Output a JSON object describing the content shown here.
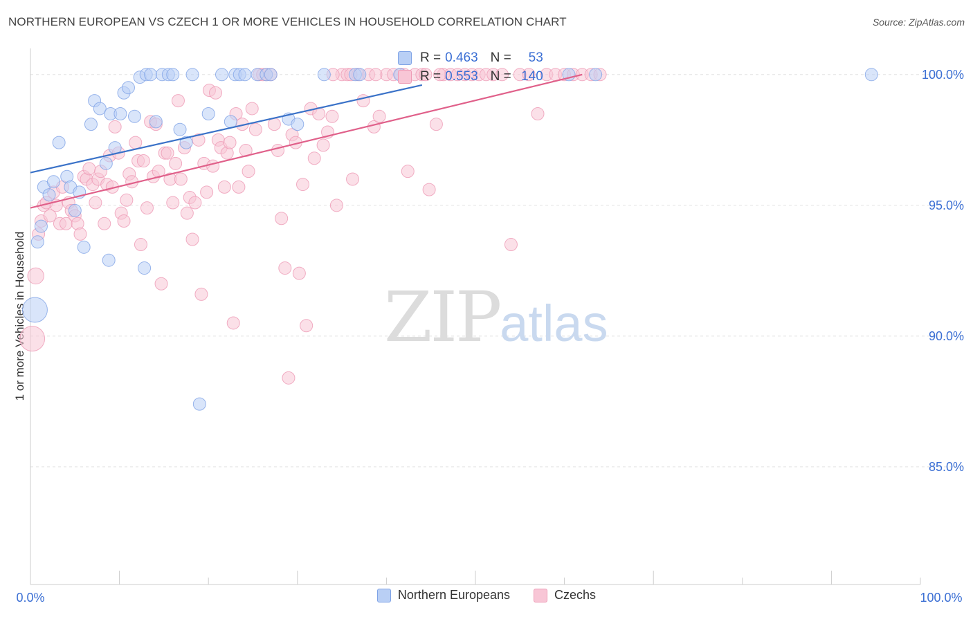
{
  "header": {
    "title": "NORTHERN EUROPEAN VS CZECH 1 OR MORE VEHICLES IN HOUSEHOLD CORRELATION CHART",
    "source": "Source: ZipAtlas.com"
  },
  "watermark": {
    "zip": "ZIP",
    "atlas": "atlas"
  },
  "stats": [
    {
      "r_label": "R = ",
      "r_value": "0.463",
      "n_label": "N = ",
      "n_value": "53",
      "fill": "#b9cff5",
      "stroke": "#7fa3e6"
    },
    {
      "r_label": "R = ",
      "r_value": "0.553",
      "n_label": "N = ",
      "n_value": "140",
      "fill": "#f8c6d6",
      "stroke": "#ee9ab5"
    }
  ],
  "chart_data": {
    "type": "scatter",
    "title": "NORTHERN EUROPEAN VS CZECH 1 OR MORE VEHICLES IN HOUSEHOLD CORRELATION CHART",
    "xlabel": "",
    "ylabel": "1 or more Vehicles in Household",
    "xlim": [
      0,
      100
    ],
    "ylim": [
      80.5,
      101
    ],
    "x_tick_labels": [
      "0.0%",
      "100.0%"
    ],
    "y_ticks": [
      {
        "value": 100,
        "label": "100.0%"
      },
      {
        "value": 95,
        "label": "95.0%"
      },
      {
        "value": 90,
        "label": "90.0%"
      },
      {
        "value": 85,
        "label": "85.0%"
      }
    ],
    "legend": [
      "Northern Europeans",
      "Czechs"
    ],
    "series": [
      {
        "name": "Northern Europeans",
        "color": "#7fa3e6",
        "fill": "#b9cff5",
        "line_color": "#3a72c8",
        "trend": {
          "x0": 0,
          "y0": 96.25,
          "x1": 44,
          "y1": 99.6
        },
        "points": [
          [
            0.5,
            91.0,
            2.0
          ],
          [
            0.8,
            93.6,
            1
          ],
          [
            1.2,
            94.2,
            1
          ],
          [
            1.5,
            95.7,
            1
          ],
          [
            2.1,
            95.4,
            1
          ],
          [
            2.6,
            95.9,
            1
          ],
          [
            3.2,
            97.4,
            1
          ],
          [
            4.1,
            96.1,
            1
          ],
          [
            4.5,
            95.7,
            1
          ],
          [
            5.0,
            94.8,
            1
          ],
          [
            5.5,
            95.5,
            1
          ],
          [
            6.0,
            93.4,
            1
          ],
          [
            6.8,
            98.1,
            1
          ],
          [
            7.2,
            99.0,
            1
          ],
          [
            7.8,
            98.7,
            1
          ],
          [
            8.5,
            96.6,
            1
          ],
          [
            8.8,
            92.9,
            1
          ],
          [
            9.0,
            98.5,
            1
          ],
          [
            9.5,
            97.2,
            1
          ],
          [
            10.1,
            98.5,
            1
          ],
          [
            10.5,
            99.3,
            1
          ],
          [
            11.0,
            99.5,
            1
          ],
          [
            11.7,
            98.4,
            1
          ],
          [
            12.3,
            99.9,
            1
          ],
          [
            12.8,
            92.6,
            1
          ],
          [
            13.0,
            100.0,
            1
          ],
          [
            13.5,
            100.0,
            1
          ],
          [
            14.1,
            98.2,
            1
          ],
          [
            14.8,
            100.0,
            1
          ],
          [
            15.5,
            100.0,
            1
          ],
          [
            16.0,
            100.0,
            1
          ],
          [
            16.8,
            97.9,
            1
          ],
          [
            17.5,
            97.4,
            1
          ],
          [
            18.2,
            100.0,
            1
          ],
          [
            19.0,
            87.4,
            1
          ],
          [
            20.0,
            98.5,
            1
          ],
          [
            21.5,
            100.0,
            1
          ],
          [
            22.5,
            98.2,
            1
          ],
          [
            23.0,
            100.0,
            1
          ],
          [
            23.5,
            100.0,
            1
          ],
          [
            24.1,
            100.0,
            1
          ],
          [
            25.5,
            100.0,
            1
          ],
          [
            26.5,
            100.0,
            1
          ],
          [
            27.0,
            100.0,
            1
          ],
          [
            29.0,
            98.3,
            1
          ],
          [
            30.0,
            98.1,
            1
          ],
          [
            33.0,
            100.0,
            1
          ],
          [
            36.5,
            100.0,
            1
          ],
          [
            37.0,
            100.0,
            1
          ],
          [
            41.5,
            100.0,
            1
          ],
          [
            60.5,
            100.0,
            1
          ],
          [
            63.5,
            100.0,
            1
          ],
          [
            94.5,
            100.0,
            1
          ]
        ]
      },
      {
        "name": "Czechs",
        "color": "#ee9ab5",
        "fill": "#f8c6d6",
        "line_color": "#e0608a",
        "trend": {
          "x0": 0,
          "y0": 94.9,
          "x1": 62,
          "y1": 100.0
        },
        "points": [
          [
            0.2,
            89.9,
            2.0
          ],
          [
            0.6,
            92.3,
            1.3
          ],
          [
            0.9,
            93.9,
            1
          ],
          [
            1.2,
            94.4,
            1
          ],
          [
            1.5,
            95.0,
            1
          ],
          [
            1.8,
            95.1,
            1
          ],
          [
            2.2,
            94.6,
            1
          ],
          [
            2.6,
            95.5,
            1
          ],
          [
            2.9,
            95.0,
            1
          ],
          [
            3.3,
            94.3,
            1
          ],
          [
            3.6,
            95.7,
            1
          ],
          [
            4.0,
            94.3,
            1
          ],
          [
            4.3,
            95.1,
            1
          ],
          [
            4.6,
            94.8,
            1
          ],
          [
            5.0,
            94.6,
            1
          ],
          [
            5.3,
            94.3,
            1
          ],
          [
            5.6,
            93.9,
            1
          ],
          [
            6.0,
            96.1,
            1
          ],
          [
            6.3,
            96.0,
            1
          ],
          [
            6.6,
            96.4,
            1
          ],
          [
            7.0,
            95.8,
            1
          ],
          [
            7.3,
            95.1,
            1
          ],
          [
            7.6,
            96.0,
            1
          ],
          [
            7.9,
            96.3,
            1
          ],
          [
            8.3,
            94.3,
            1
          ],
          [
            8.6,
            95.8,
            1
          ],
          [
            8.9,
            96.9,
            1
          ],
          [
            9.2,
            95.7,
            1
          ],
          [
            9.5,
            98.0,
            1
          ],
          [
            9.9,
            97.0,
            1
          ],
          [
            10.2,
            94.7,
            1
          ],
          [
            10.5,
            94.4,
            1
          ],
          [
            10.8,
            95.2,
            1
          ],
          [
            11.1,
            96.2,
            1
          ],
          [
            11.4,
            95.9,
            1
          ],
          [
            11.8,
            97.4,
            1
          ],
          [
            12.1,
            96.7,
            1
          ],
          [
            12.4,
            93.5,
            1
          ],
          [
            12.7,
            96.7,
            1
          ],
          [
            13.1,
            94.9,
            1
          ],
          [
            13.5,
            98.2,
            1
          ],
          [
            13.8,
            96.1,
            1
          ],
          [
            14.1,
            98.1,
            1
          ],
          [
            14.4,
            96.3,
            1
          ],
          [
            14.7,
            92.0,
            1
          ],
          [
            15.1,
            97.0,
            1
          ],
          [
            15.4,
            97.0,
            1
          ],
          [
            15.7,
            96.0,
            1
          ],
          [
            16.0,
            95.1,
            1
          ],
          [
            16.3,
            96.6,
            1
          ],
          [
            16.6,
            99.0,
            1
          ],
          [
            16.9,
            96.0,
            1
          ],
          [
            17.3,
            97.2,
            1
          ],
          [
            17.6,
            94.7,
            1
          ],
          [
            17.9,
            95.3,
            1
          ],
          [
            18.2,
            93.7,
            1
          ],
          [
            18.5,
            95.1,
            1
          ],
          [
            18.9,
            97.5,
            1
          ],
          [
            19.2,
            91.6,
            1
          ],
          [
            19.5,
            96.6,
            1
          ],
          [
            19.8,
            95.5,
            1
          ],
          [
            20.1,
            99.4,
            1
          ],
          [
            20.5,
            96.5,
            1
          ],
          [
            20.8,
            99.3,
            1
          ],
          [
            21.1,
            97.5,
            1
          ],
          [
            21.4,
            97.2,
            1
          ],
          [
            21.8,
            95.7,
            1
          ],
          [
            22.1,
            97.0,
            1
          ],
          [
            22.4,
            97.4,
            1
          ],
          [
            22.8,
            90.5,
            1
          ],
          [
            23.1,
            98.5,
            1
          ],
          [
            23.4,
            95.7,
            1
          ],
          [
            23.8,
            98.1,
            1
          ],
          [
            24.2,
            97.1,
            1
          ],
          [
            24.5,
            96.3,
            1
          ],
          [
            24.9,
            98.7,
            1
          ],
          [
            25.3,
            97.9,
            1
          ],
          [
            25.7,
            100.0,
            1
          ],
          [
            26.1,
            100.0,
            1
          ],
          [
            26.5,
            100.0,
            1
          ],
          [
            27.0,
            100.0,
            1
          ],
          [
            27.4,
            98.1,
            1
          ],
          [
            27.8,
            97.1,
            1
          ],
          [
            28.2,
            94.5,
            1
          ],
          [
            28.6,
            92.6,
            1
          ],
          [
            29.0,
            88.4,
            1
          ],
          [
            29.4,
            97.7,
            1
          ],
          [
            29.8,
            97.4,
            1
          ],
          [
            30.2,
            92.4,
            1
          ],
          [
            30.6,
            95.8,
            1
          ],
          [
            31.0,
            90.4,
            1
          ],
          [
            31.5,
            98.7,
            1
          ],
          [
            31.9,
            96.8,
            1
          ],
          [
            32.4,
            98.5,
            1
          ],
          [
            32.9,
            97.3,
            1
          ],
          [
            33.4,
            97.8,
            1
          ],
          [
            33.9,
            98.4,
            1
          ],
          [
            34.4,
            95.0,
            1
          ],
          [
            35.0,
            100.0,
            1
          ],
          [
            35.6,
            100.0,
            1
          ],
          [
            36.2,
            96.0,
            1
          ],
          [
            36.8,
            100.0,
            1
          ],
          [
            37.4,
            99.0,
            1
          ],
          [
            38.0,
            100.0,
            1
          ],
          [
            38.6,
            98.0,
            1
          ],
          [
            39.2,
            98.4,
            1
          ],
          [
            40.0,
            100.0,
            1
          ],
          [
            40.8,
            100.0,
            1
          ],
          [
            41.6,
            100.0,
            1
          ],
          [
            42.4,
            96.3,
            1
          ],
          [
            43.2,
            100.0,
            1
          ],
          [
            44.0,
            100.0,
            1
          ],
          [
            44.8,
            95.6,
            1
          ],
          [
            45.6,
            98.1,
            1
          ],
          [
            46.4,
            100.0,
            1
          ],
          [
            47.2,
            100.0,
            1
          ],
          [
            48.0,
            100.0,
            1
          ],
          [
            48.8,
            100.0,
            1
          ],
          [
            49.6,
            100.0,
            1
          ],
          [
            50.4,
            100.0,
            1
          ],
          [
            51.2,
            100.0,
            1
          ],
          [
            52.0,
            100.0,
            1
          ],
          [
            53.0,
            100.0,
            1
          ],
          [
            54.0,
            93.5,
            1
          ],
          [
            55.0,
            100.0,
            1
          ],
          [
            56.0,
            100.0,
            1
          ],
          [
            57.0,
            98.5,
            1
          ],
          [
            58.0,
            100.0,
            1
          ],
          [
            59.0,
            100.0,
            1
          ],
          [
            60.0,
            100.0,
            1
          ],
          [
            61.0,
            100.0,
            1
          ],
          [
            62.0,
            100.0,
            1
          ],
          [
            63.0,
            100.0,
            1
          ],
          [
            64.0,
            100.0,
            1
          ],
          [
            34.0,
            100.0,
            1
          ],
          [
            36.0,
            100.0,
            1
          ],
          [
            38.8,
            100.0,
            1
          ],
          [
            42.0,
            100.0,
            1
          ],
          [
            44.4,
            100.0,
            1
          ],
          [
            46.0,
            100.0,
            1
          ]
        ]
      }
    ]
  }
}
